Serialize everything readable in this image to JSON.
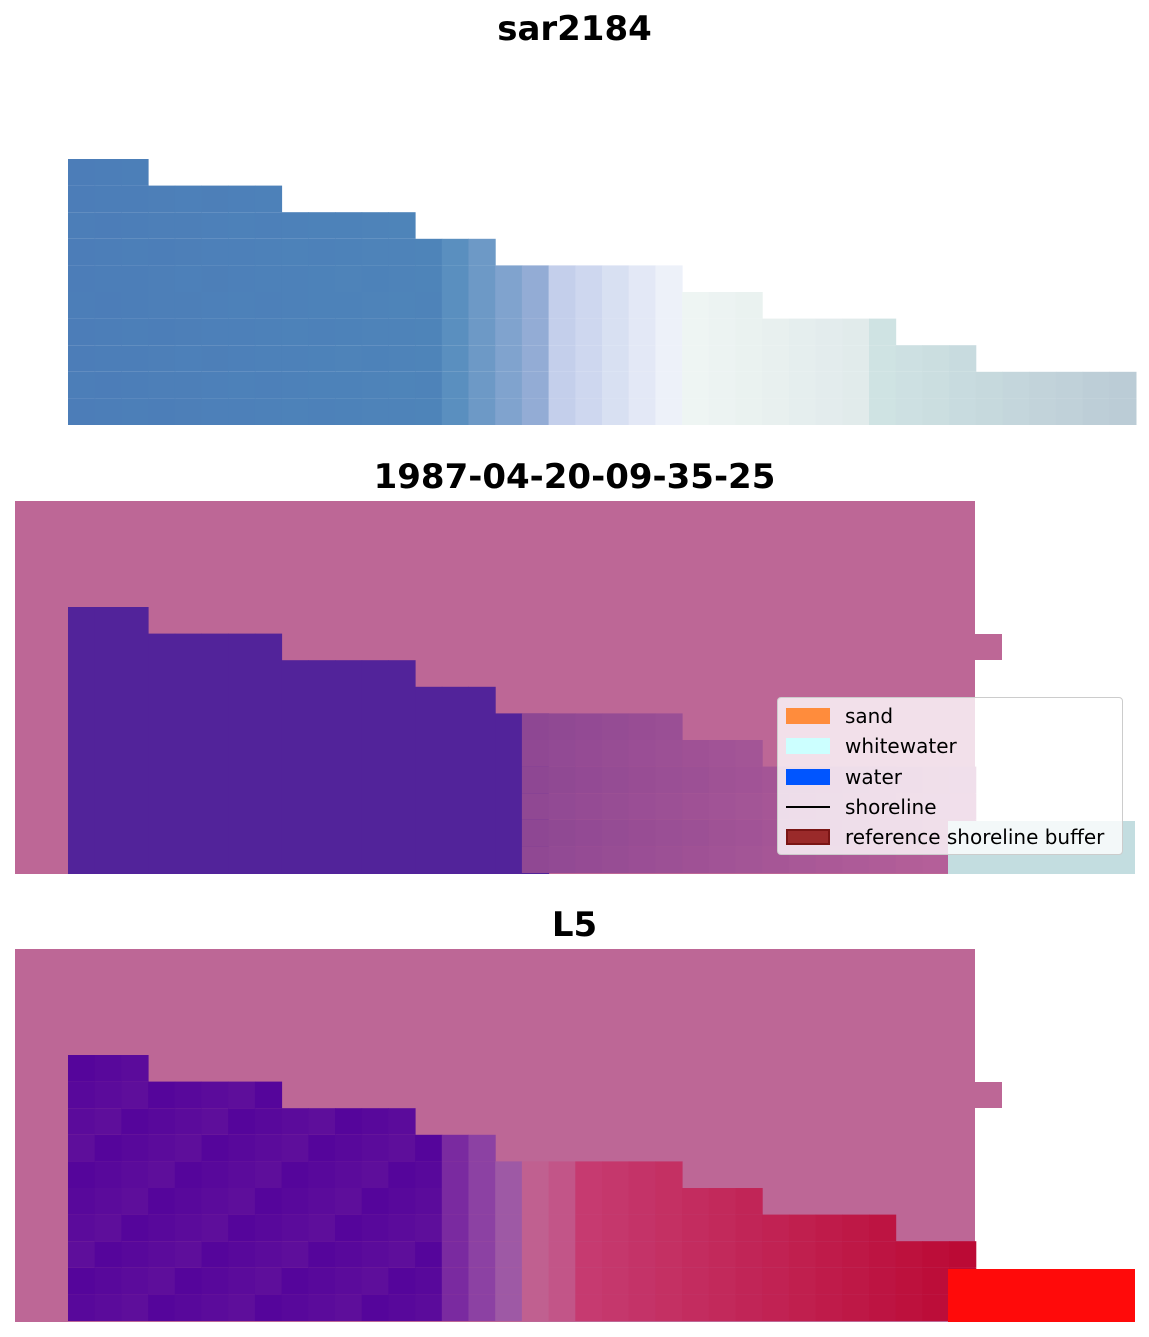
{
  "panels": [
    {
      "title": "sar2184"
    },
    {
      "title": "1987-04-20-09-35-25"
    },
    {
      "title": "L5"
    }
  ],
  "legend": {
    "items": [
      {
        "label": "sand",
        "color": "#ff8c3c",
        "kind": "patch"
      },
      {
        "label": "whitewater",
        "color": "#ccffff",
        "kind": "patch"
      },
      {
        "label": "water",
        "color": "#0055ff",
        "kind": "patch"
      },
      {
        "label": "shoreline",
        "color": "#000000",
        "kind": "line"
      },
      {
        "label": "reference shoreline buffer",
        "color": "#9a2a2a",
        "kind": "patch"
      }
    ]
  },
  "colors": {
    "rgb_blue": "#4f80b8",
    "overlay_pink": "#bd6796",
    "water_class_purple": "#52239a",
    "index_purple": "#55059b",
    "index_red": "#bb0a35",
    "bright_red": "#ff0a0a",
    "pale_teal": "#c3dde0"
  }
}
